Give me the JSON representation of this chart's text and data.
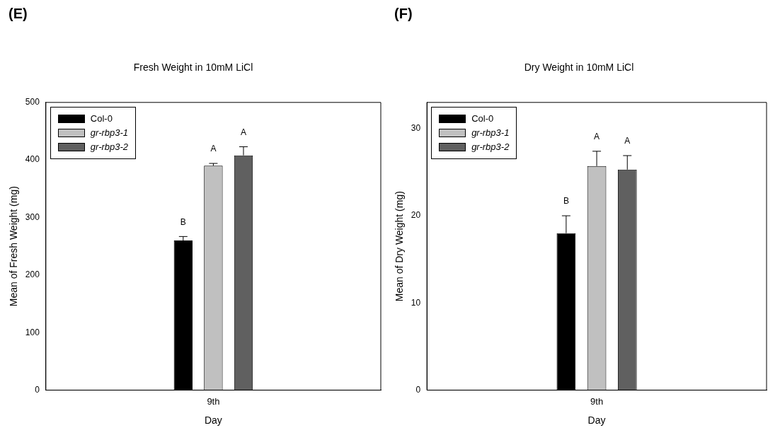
{
  "chart_data": [
    {
      "type": "bar",
      "title": "Fresh Weight in 10mM LiCl",
      "annotations": [
        "(E)"
      ],
      "xlabel": "Day",
      "ylabel": "Mean of Fresh Weight (mg)",
      "categories": [
        "9th"
      ],
      "series": [
        {
          "name": "Col-0",
          "color": "#000000",
          "values": [
            260
          ],
          "errors": [
            7
          ],
          "value_labels": [
            "B"
          ]
        },
        {
          "name": "gr-rbp3-1",
          "color": "#c0c0c0",
          "values": [
            390
          ],
          "errors": [
            4
          ],
          "value_labels": [
            "A"
          ]
        },
        {
          "name": "gr-rbp3-2",
          "color": "#606060",
          "values": [
            408
          ],
          "errors": [
            15
          ],
          "value_labels": [
            "A"
          ]
        }
      ],
      "ylim": [
        0,
        500
      ],
      "yticks": [
        0,
        100,
        200,
        300,
        400,
        500
      ],
      "legend": "top left"
    },
    {
      "type": "bar",
      "title": "Dry Weight in 10mM LiCl",
      "annotations": [
        "(F)"
      ],
      "xlabel": "Day",
      "ylabel": "Mean of Dry Weight (mg)",
      "categories": [
        "9th"
      ],
      "series": [
        {
          "name": "Col-0",
          "color": "#000000",
          "values": [
            18
          ],
          "errors": [
            2
          ],
          "value_labels": [
            "B"
          ]
        },
        {
          "name": "gr-rbp3-1",
          "color": "#c0c0c0",
          "values": [
            25.7
          ],
          "errors": [
            1.7
          ],
          "value_labels": [
            "A"
          ]
        },
        {
          "name": "gr-rbp3-2",
          "color": "#606060",
          "values": [
            25.3
          ],
          "errors": [
            1.6
          ],
          "value_labels": [
            "A"
          ]
        }
      ],
      "ylim": [
        0,
        33
      ],
      "yticks": [
        0,
        10,
        20,
        30
      ],
      "legend": "top left"
    }
  ]
}
